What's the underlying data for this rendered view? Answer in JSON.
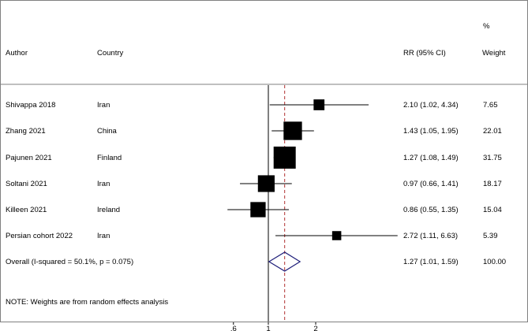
{
  "headers": {
    "author": "Author",
    "country": "Country",
    "rr": "RR (95% CI)",
    "pct": "%",
    "weight": "Weight"
  },
  "footnote": "NOTE: Weights are from random effects analysis",
  "colors": {
    "box": "#000000",
    "ci_line": "#000000",
    "diamond": "#1f1f7a",
    "ref_line": "#b03030",
    "frame": "#808080"
  },
  "chart_data": {
    "type": "forest",
    "scale": "log",
    "xlim": [
      0.5,
      7.5
    ],
    "null_value": 1,
    "pooled_estimate": 1.27,
    "xticks": [
      {
        "value": 0.6,
        "label": ".6"
      },
      {
        "value": 1,
        "label": "1"
      },
      {
        "value": 2,
        "label": "2"
      }
    ],
    "studies": [
      {
        "author": "Shivappa 2018",
        "country": "Iran",
        "rr": 2.1,
        "lo": 1.02,
        "hi": 4.34,
        "ci_text": "2.10 (1.02, 4.34)",
        "weight": 7.65,
        "weight_text": "7.65"
      },
      {
        "author": "Zhang 2021",
        "country": "China",
        "rr": 1.43,
        "lo": 1.05,
        "hi": 1.95,
        "ci_text": "1.43 (1.05, 1.95)",
        "weight": 22.01,
        "weight_text": "22.01"
      },
      {
        "author": "Pajunen 2021",
        "country": "Finland",
        "rr": 1.27,
        "lo": 1.08,
        "hi": 1.49,
        "ci_text": "1.27 (1.08, 1.49)",
        "weight": 31.75,
        "weight_text": "31.75"
      },
      {
        "author": "Soltani 2021",
        "country": "Iran",
        "rr": 0.97,
        "lo": 0.66,
        "hi": 1.41,
        "ci_text": "0.97 (0.66, 1.41)",
        "weight": 18.17,
        "weight_text": "18.17"
      },
      {
        "author": "Killeen 2021",
        "country": "Ireland",
        "rr": 0.86,
        "lo": 0.55,
        "hi": 1.35,
        "ci_text": "0.86 (0.55, 1.35)",
        "weight": 15.04,
        "weight_text": "15.04"
      },
      {
        "author": "Persian cohort 2022",
        "country": "Iran",
        "rr": 2.72,
        "lo": 1.11,
        "hi": 6.63,
        "ci_text": "2.72 (1.11, 6.63)",
        "weight": 5.39,
        "weight_text": "5.39"
      }
    ],
    "overall": {
      "label": "Overall  (I-squared = 50.1%, p = 0.075)",
      "rr": 1.27,
      "lo": 1.01,
      "hi": 1.59,
      "ci_text": "1.27 (1.01, 1.59)",
      "weight_text": "100.00"
    }
  }
}
